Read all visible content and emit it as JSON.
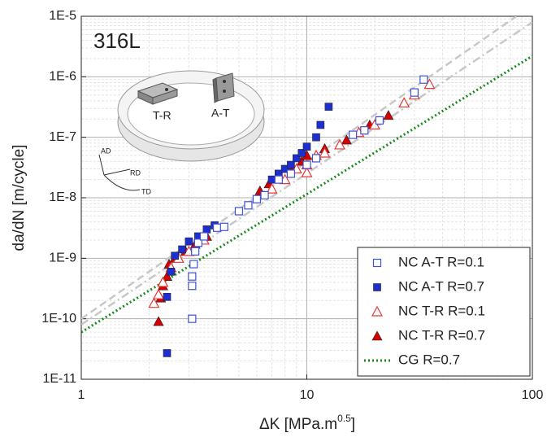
{
  "chart_data": {
    "type": "scatter",
    "xlabel": [
      "ΔK [MPa.m",
      "0.5",
      "]"
    ],
    "ylabel": "da/dN [m/cycle]",
    "annotations": [
      "316L",
      "T-R",
      "A-T",
      "AD",
      "RD",
      "TD"
    ],
    "xscale": "log",
    "yscale": "log",
    "xlim": [
      1,
      100
    ],
    "ylim": [
      1e-11,
      1e-05
    ],
    "xticks": [
      1,
      10,
      100
    ],
    "yticks": [
      {
        "value": 1e-11,
        "label": "1E-11"
      },
      {
        "value": 1e-10,
        "label": "1E-10"
      },
      {
        "value": 1e-09,
        "label": "1E-9"
      },
      {
        "value": 1e-08,
        "label": "1E-8"
      },
      {
        "value": 1e-07,
        "label": "1E-7"
      },
      {
        "value": 1e-06,
        "label": "1E-6"
      },
      {
        "value": 1e-05,
        "label": "1E-5"
      }
    ],
    "grid": true,
    "minor_grid": true,
    "legend": "lower right",
    "series": [
      {
        "name": "NC A-T R=0.1",
        "color": "#3f51d6",
        "marker": "square",
        "filled": false,
        "x": [
          3.1,
          3.1,
          3.1,
          3.15,
          3.2,
          3.3,
          3.5,
          4.0,
          4.3,
          5,
          5.5,
          6,
          6.5,
          7.5,
          8.5,
          10,
          11,
          16,
          18,
          21,
          30,
          33
        ],
        "values": [
          1e-10,
          3.5e-10,
          5e-10,
          8e-10,
          1.3e-09,
          1.8e-09,
          2.3e-09,
          3.2e-09,
          3.3e-09,
          6e-09,
          7.5e-09,
          9.5e-09,
          1.1e-08,
          2e-08,
          2.5e-08,
          3.5e-08,
          4.5e-08,
          1.1e-07,
          1.3e-07,
          1.9e-07,
          5.5e-07,
          9e-07
        ]
      },
      {
        "name": "NC A-T R=0.7",
        "color": "#1d2fd0",
        "marker": "square",
        "filled": true,
        "x": [
          2.4,
          2.4,
          2.5,
          2.6,
          2.8,
          3,
          3.3,
          3.6,
          3.9,
          7,
          7.5,
          8,
          8.5,
          9,
          9.5,
          10,
          11,
          11.5,
          12.5
        ],
        "values": [
          2.7e-11,
          2.3e-10,
          6e-10,
          1.1e-09,
          1.4e-09,
          1.9e-09,
          2.3e-09,
          3e-09,
          3.5e-09,
          2e-08,
          2.5e-08,
          3e-08,
          3.5e-08,
          4.5e-08,
          5.5e-08,
          7e-08,
          1e-07,
          1.6e-07,
          3.2e-07
        ]
      },
      {
        "name": "NC T-R R=0.1",
        "color": "#e53935",
        "marker": "triangle",
        "filled": false,
        "x": [
          2.1,
          2.2,
          2.3,
          2.5,
          2.7,
          3,
          3.5,
          7,
          8,
          9,
          10,
          10,
          11,
          12,
          14,
          17,
          20,
          27,
          30,
          35
        ],
        "values": [
          1.8e-10,
          2.5e-10,
          4e-10,
          7e-10,
          1e-09,
          1.3e-09,
          2e-09,
          1.4e-08,
          2e-08,
          3e-08,
          2.6e-08,
          3.5e-08,
          5e-08,
          5.5e-08,
          7.5e-08,
          1.2e-07,
          1.6e-07,
          3.7e-07,
          5e-07,
          7.5e-07
        ]
      },
      {
        "name": "NC T-R R=0.7",
        "color": "#d50000",
        "marker": "triangle",
        "filled": true,
        "x": [
          2.2,
          2.25,
          2.3,
          2.4,
          2.45,
          2.6,
          2.9,
          3.2,
          3.6,
          6.2,
          6.8,
          7.5,
          8.5,
          9.5,
          10,
          12,
          15,
          19,
          23
        ],
        "values": [
          9e-11,
          2.2e-10,
          3.5e-10,
          5e-10,
          8e-10,
          1e-09,
          1.3e-09,
          1.7e-09,
          2.3e-09,
          1.3e-08,
          1.7e-08,
          2.2e-08,
          3.2e-08,
          4e-08,
          5e-08,
          6.5e-08,
          9e-08,
          1.6e-07,
          2.3e-07
        ]
      },
      {
        "name": "CG R=0.7",
        "color": "#1a8a1a",
        "marker": "line",
        "style": "dotted",
        "x": [
          1,
          100
        ],
        "values": [
          6e-11,
          2.2e-06
        ]
      },
      {
        "color": "#c8c8c8",
        "marker": "line",
        "style": "dashed",
        "x": [
          1,
          85
        ],
        "values": [
          1e-10,
          1e-05
        ]
      },
      {
        "color": "#c8c8c8",
        "marker": "line",
        "style": "dashdot",
        "x": [
          1,
          100
        ],
        "values": [
          8e-11,
          8e-06
        ]
      }
    ]
  }
}
